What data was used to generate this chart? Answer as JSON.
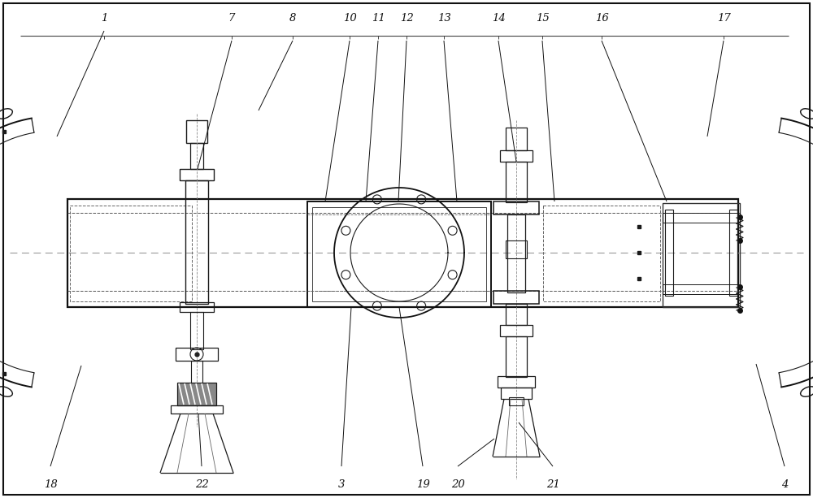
{
  "bg": "#ffffff",
  "lc": "#1a1a1a",
  "fig_w": 10.0,
  "fig_h": 6.13,
  "dpi": 100,
  "top_labels": [
    "1",
    "7",
    "8",
    "10",
    "11",
    "12",
    "13",
    "14",
    "15",
    "16",
    "17"
  ],
  "top_x": [
    128,
    285,
    360,
    430,
    465,
    500,
    546,
    613,
    667,
    740,
    890
  ],
  "bot_labels": [
    "18",
    "22",
    "3",
    "19",
    "20",
    "21",
    "4"
  ],
  "bot_x": [
    62,
    248,
    420,
    520,
    563,
    680,
    965
  ]
}
